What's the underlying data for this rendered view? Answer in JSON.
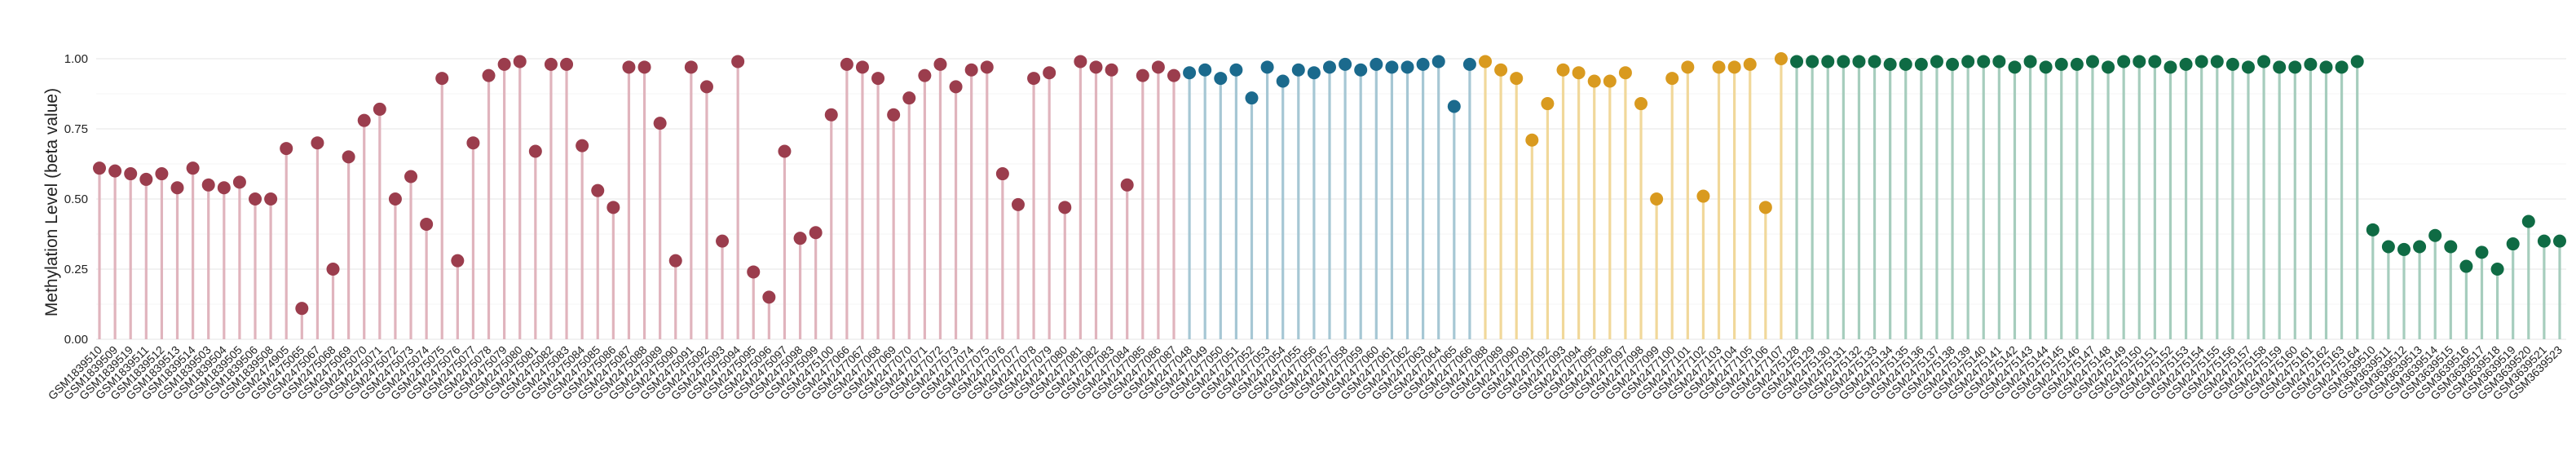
{
  "chart_data": {
    "type": "lollipop",
    "title": "",
    "xlabel": "",
    "ylabel": "Methylation Level (beta value)",
    "ylim": [
      0,
      1
    ],
    "yticks": [
      "0.00",
      "0.25",
      "0.50",
      "0.75",
      "1.00"
    ],
    "grid": true,
    "legend": "none",
    "group_colors": [
      "#9b3d4d",
      "#1b6a8d",
      "#d99a1f",
      "#0f6b44"
    ],
    "stem_colors": [
      "#e0b4bd",
      "#a6c7d4",
      "#f1d89a",
      "#a6cdbd"
    ],
    "categories": [
      "GSM1839510",
      "GSM1839509",
      "GSM1839519",
      "GSM1839511",
      "GSM1839512",
      "GSM1839513",
      "GSM1839514",
      "GSM1839503",
      "GSM1839504",
      "GSM1839505",
      "GSM1839506",
      "GSM1839508",
      "GSM2474905",
      "GSM2475065",
      "GSM2475067",
      "GSM2475068",
      "GSM2475069",
      "GSM2475070",
      "GSM2475071",
      "GSM2475072",
      "GSM2475073",
      "GSM2475074",
      "GSM2475075",
      "GSM2475076",
      "GSM2475077",
      "GSM2475078",
      "GSM2475079",
      "GSM2475080",
      "GSM2475081",
      "GSM2475082",
      "GSM2475083",
      "GSM2475084",
      "GSM2475085",
      "GSM2475086",
      "GSM2475087",
      "GSM2475088",
      "GSM2475089",
      "GSM2475090",
      "GSM2475091",
      "GSM2475092",
      "GSM2475093",
      "GSM2475094",
      "GSM2475095",
      "GSM2475096",
      "GSM2475097",
      "GSM2475098",
      "GSM2475099",
      "GSM2475100",
      "GSM2477066",
      "GSM2477067",
      "GSM2477068",
      "GSM2477069",
      "GSM2477070",
      "GSM2477071",
      "GSM2477072",
      "GSM2477073",
      "GSM2477074",
      "GSM2477075",
      "GSM2477076",
      "GSM2477077",
      "GSM2477078",
      "GSM2477079",
      "GSM2477080",
      "GSM2477081",
      "GSM2477082",
      "GSM2477083",
      "GSM2477084",
      "GSM2477085",
      "GSM2477086",
      "GSM2477087",
      "GSM2477048",
      "GSM2477049",
      "GSM2477050",
      "GSM2477051",
      "GSM2477052",
      "GSM2477053",
      "GSM2477054",
      "GSM2477055",
      "GSM2477056",
      "GSM2477057",
      "GSM2477058",
      "GSM2477059",
      "GSM2477060",
      "GSM2477061",
      "GSM2477062",
      "GSM2477063",
      "GSM2477064",
      "GSM2477065",
      "GSM2477066",
      "GSM2477088",
      "GSM2477089",
      "GSM2477090",
      "GSM2477091",
      "GSM2477092",
      "GSM2477093",
      "GSM2477094",
      "GSM2477095",
      "GSM2477096",
      "GSM2477097",
      "GSM2477098",
      "GSM2477099",
      "GSM2477100",
      "GSM2477101",
      "GSM2477102",
      "GSM2477103",
      "GSM2477104",
      "GSM2477105",
      "GSM2477106",
      "GSM2477107",
      "GSM2475128",
      "GSM2475129",
      "GSM2475130",
      "GSM2475131",
      "GSM2475132",
      "GSM2475133",
      "GSM2475134",
      "GSM2475135",
      "GSM2475136",
      "GSM2475137",
      "GSM2475138",
      "GSM2475139",
      "GSM2475140",
      "GSM2475141",
      "GSM2475142",
      "GSM2475143",
      "GSM2475144",
      "GSM2475145",
      "GSM2475146",
      "GSM2475147",
      "GSM2475148",
      "GSM2475149",
      "GSM2475150",
      "GSM2475151",
      "GSM2475152",
      "GSM2475153",
      "GSM2475154",
      "GSM2475155",
      "GSM2475156",
      "GSM2475157",
      "GSM2475158",
      "GSM2475159",
      "GSM2475160",
      "GSM2475161",
      "GSM2475162",
      "GSM2475163",
      "GSM2475164",
      "GSM3639510",
      "GSM3639511",
      "GSM3639512",
      "GSM3639513",
      "GSM3639514",
      "GSM3639515",
      "GSM3639516",
      "GSM3639517",
      "GSM3639518",
      "GSM3639519",
      "GSM3639520",
      "GSM3639521",
      "GSM3639523"
    ],
    "group_index": [
      0,
      0,
      0,
      0,
      0,
      0,
      0,
      0,
      0,
      0,
      0,
      0,
      0,
      0,
      0,
      0,
      0,
      0,
      0,
      0,
      0,
      0,
      0,
      0,
      0,
      0,
      0,
      0,
      0,
      0,
      0,
      0,
      0,
      0,
      0,
      0,
      0,
      0,
      0,
      0,
      0,
      0,
      0,
      0,
      0,
      0,
      0,
      0,
      0,
      0,
      0,
      0,
      0,
      0,
      0,
      0,
      0,
      0,
      0,
      0,
      0,
      0,
      0,
      0,
      0,
      0,
      0,
      0,
      0,
      0,
      1,
      1,
      1,
      1,
      1,
      1,
      1,
      1,
      1,
      1,
      1,
      1,
      1,
      1,
      1,
      1,
      1,
      1,
      1,
      2,
      2,
      2,
      2,
      2,
      2,
      2,
      2,
      2,
      2,
      2,
      2,
      2,
      2,
      2,
      2,
      2,
      2,
      2,
      2,
      3,
      3,
      3,
      3,
      3,
      3,
      3,
      3,
      3,
      3,
      3,
      3,
      3,
      3,
      3,
      3,
      3,
      3,
      3,
      3,
      3,
      3,
      3,
      3,
      3,
      3,
      3,
      3,
      3,
      3,
      3,
      3,
      3,
      3,
      3,
      3,
      3,
      3,
      3,
      3,
      3,
      3,
      3,
      3,
      3,
      3,
      3,
      3,
      3,
      3
    ],
    "values": [
      0.61,
      0.6,
      0.59,
      0.57,
      0.59,
      0.54,
      0.61,
      0.55,
      0.54,
      0.56,
      0.5,
      0.5,
      0.68,
      0.11,
      0.7,
      0.25,
      0.65,
      0.78,
      0.82,
      0.5,
      0.58,
      0.41,
      0.93,
      0.28,
      0.7,
      0.94,
      0.98,
      0.99,
      0.67,
      0.98,
      0.98,
      0.69,
      0.53,
      0.47,
      0.97,
      0.97,
      0.77,
      0.28,
      0.97,
      0.9,
      0.35,
      0.99,
      0.24,
      0.15,
      0.67,
      0.36,
      0.38,
      0.8,
      0.98,
      0.97,
      0.93,
      0.8,
      0.86,
      0.94,
      0.98,
      0.9,
      0.96,
      0.97,
      0.59,
      0.48,
      0.93,
      0.95,
      0.47,
      0.99,
      0.97,
      0.96,
      0.55,
      0.94,
      0.97,
      0.94,
      0.95,
      0.96,
      0.93,
      0.96,
      0.86,
      0.97,
      0.92,
      0.96,
      0.95,
      0.97,
      0.98,
      0.96,
      0.98,
      0.97,
      0.97,
      0.98,
      0.99,
      0.83,
      0.98,
      0.99,
      0.96,
      0.93,
      0.71,
      0.84,
      0.96,
      0.95,
      0.92,
      0.92,
      0.95,
      0.84,
      0.5,
      0.93,
      0.97,
      0.51,
      0.97,
      0.97,
      0.98,
      0.47,
      1.0,
      0.99,
      0.99,
      0.99,
      0.99,
      0.99,
      0.99,
      0.98,
      0.98,
      0.98,
      0.99,
      0.98,
      0.99,
      0.99,
      0.99,
      0.97,
      0.99,
      0.97,
      0.98,
      0.98,
      0.99,
      0.97,
      0.99,
      0.99,
      0.99,
      0.97,
      0.98,
      0.99,
      0.99,
      0.98,
      0.97,
      0.99,
      0.97,
      0.97,
      0.98,
      0.97,
      0.97,
      0.99,
      0.39,
      0.33,
      0.32,
      0.33,
      0.37,
      0.33,
      0.26,
      0.31,
      0.25,
      0.34,
      0.42,
      0.35,
      0.35
    ]
  }
}
